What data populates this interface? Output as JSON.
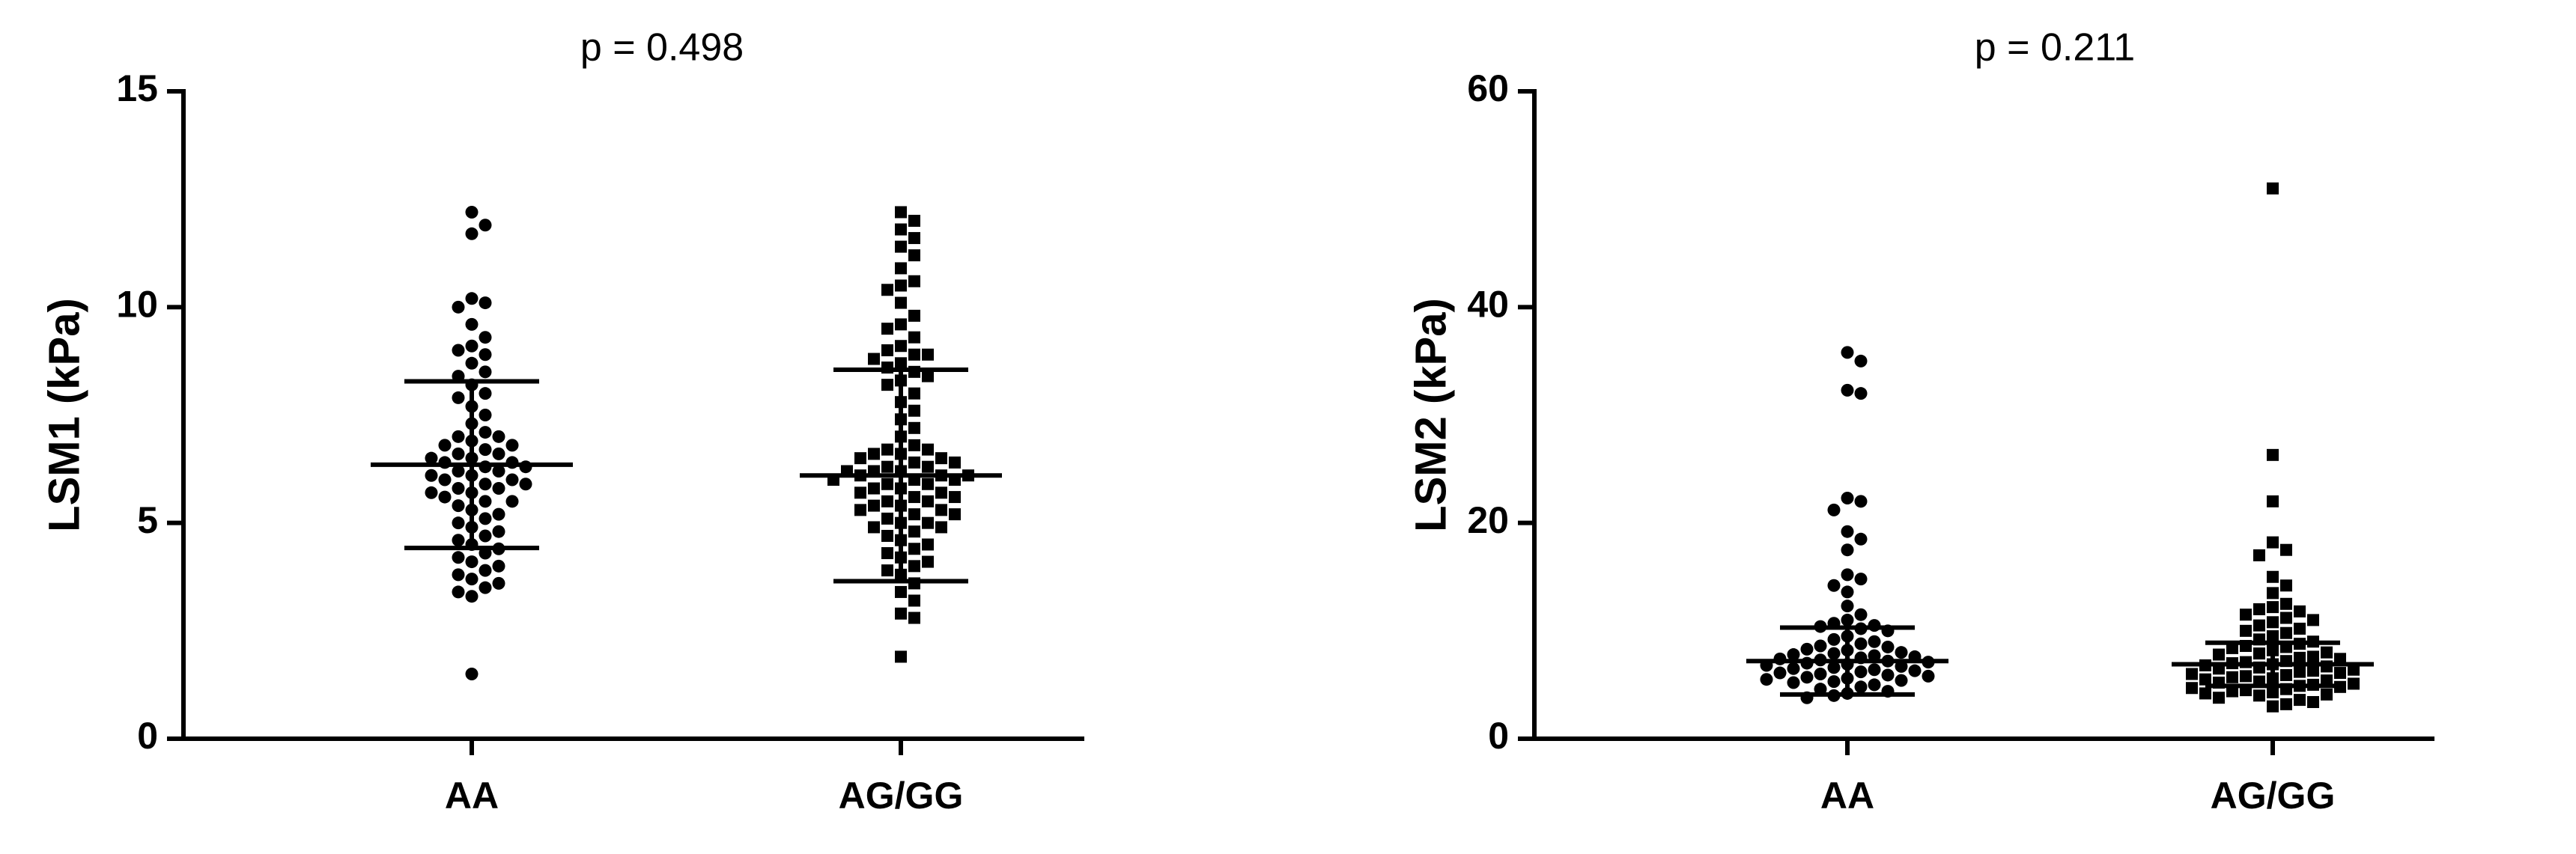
{
  "chart_data": [
    {
      "type": "dot",
      "title": "p = 0.498",
      "ylabel": "LSM1 (kPa)",
      "categories": [
        "AA",
        "AG/GG"
      ],
      "ylim": [
        0,
        15
      ],
      "yticks": [
        0,
        5,
        10,
        15
      ],
      "color": "#000000",
      "groups": [
        {
          "name": "AA",
          "marker": "circle",
          "mean": 6.35,
          "sd": 1.93,
          "values": [
            12.2,
            11.9,
            11.7,
            10.2,
            10.1,
            10.0,
            9.6,
            9.3,
            9.1,
            9.0,
            8.9,
            8.7,
            8.5,
            8.4,
            8.2,
            8.0,
            7.9,
            7.7,
            7.5,
            7.3,
            7.1,
            7.0,
            7.0,
            6.9,
            6.8,
            6.8,
            6.7,
            6.6,
            6.6,
            6.5,
            6.5,
            6.4,
            6.4,
            6.3,
            6.3,
            6.2,
            6.2,
            6.1,
            6.1,
            6.0,
            6.0,
            5.9,
            5.9,
            5.8,
            5.8,
            5.7,
            5.7,
            5.6,
            5.5,
            5.5,
            5.4,
            5.3,
            5.2,
            5.1,
            5.0,
            4.9,
            4.8,
            4.7,
            4.6,
            4.5,
            4.4,
            4.3,
            4.2,
            4.1,
            4.0,
            3.9,
            3.8,
            3.7,
            3.6,
            3.5,
            3.4,
            3.3,
            1.5
          ]
        },
        {
          "name": "AG/GG",
          "marker": "square",
          "mean": 6.1,
          "sd": 2.45,
          "values": [
            12.2,
            12.0,
            11.8,
            11.6,
            11.4,
            11.2,
            10.9,
            10.6,
            10.5,
            10.4,
            10.1,
            9.8,
            9.6,
            9.5,
            9.3,
            9.1,
            9.0,
            8.9,
            8.9,
            8.8,
            8.7,
            8.6,
            8.5,
            8.4,
            8.3,
            8.2,
            8.0,
            7.8,
            7.6,
            7.4,
            7.2,
            7.0,
            6.8,
            6.7,
            6.7,
            6.6,
            6.6,
            6.5,
            6.5,
            6.4,
            6.4,
            6.3,
            6.3,
            6.2,
            6.2,
            6.2,
            6.1,
            6.1,
            6.1,
            6.0,
            6.0,
            6.0,
            5.9,
            5.9,
            5.8,
            5.8,
            5.7,
            5.7,
            5.6,
            5.6,
            5.5,
            5.5,
            5.4,
            5.4,
            5.3,
            5.3,
            5.2,
            5.2,
            5.1,
            5.0,
            5.0,
            4.9,
            4.9,
            4.8,
            4.7,
            4.6,
            4.5,
            4.4,
            4.3,
            4.2,
            4.1,
            4.0,
            3.9,
            3.8,
            3.6,
            3.4,
            3.2,
            2.9,
            2.8,
            1.9
          ]
        }
      ]
    },
    {
      "type": "dot",
      "title": "p = 0.211",
      "ylabel": "LSM2 (kPa)",
      "categories": [
        "AA",
        "AG/GG"
      ],
      "ylim": [
        0,
        60
      ],
      "yticks": [
        0,
        20,
        40,
        60
      ],
      "color": "#000000",
      "groups": [
        {
          "name": "AA",
          "marker": "circle",
          "mean": 7.2,
          "sd": 3.1,
          "values": [
            35.8,
            35.0,
            32.3,
            32.0,
            22.3,
            22.0,
            21.2,
            19.2,
            18.5,
            17.5,
            15.2,
            14.8,
            14.2,
            13.6,
            12.3,
            11.5,
            11.0,
            10.7,
            10.5,
            10.4,
            10.2,
            10.0,
            9.5,
            9.2,
            9.0,
            8.8,
            8.6,
            8.5,
            8.3,
            8.2,
            8.0,
            7.9,
            7.8,
            7.7,
            7.6,
            7.5,
            7.4,
            7.3,
            7.2,
            7.1,
            7.0,
            6.9,
            6.8,
            6.7,
            6.6,
            6.5,
            6.4,
            6.3,
            6.2,
            6.1,
            6.0,
            5.9,
            5.8,
            5.7,
            5.6,
            5.5,
            5.4,
            5.3,
            5.2,
            5.0,
            4.8,
            4.6,
            4.4,
            4.2,
            4.0,
            3.8
          ]
        },
        {
          "name": "AG/GG",
          "marker": "square",
          "mean": 6.9,
          "sd": 2.0,
          "values": [
            51.0,
            26.3,
            22.0,
            18.2,
            17.5,
            17.0,
            15.0,
            14.2,
            13.5,
            12.5,
            12.2,
            12.0,
            11.8,
            11.5,
            11.2,
            11.0,
            10.8,
            10.5,
            10.2,
            10.0,
            9.8,
            9.5,
            9.2,
            9.0,
            8.8,
            8.6,
            8.5,
            8.4,
            8.2,
            8.0,
            7.9,
            7.8,
            7.6,
            7.5,
            7.4,
            7.2,
            7.1,
            7.0,
            6.9,
            6.8,
            6.7,
            6.6,
            6.5,
            6.4,
            6.3,
            6.2,
            6.1,
            6.0,
            5.9,
            5.8,
            5.7,
            5.6,
            5.5,
            5.4,
            5.3,
            5.2,
            5.1,
            5.0,
            4.9,
            4.8,
            4.7,
            4.6,
            4.5,
            4.4,
            4.3,
            4.2,
            4.1,
            4.0,
            3.8,
            3.6,
            3.4,
            3.2,
            3.0
          ]
        }
      ]
    }
  ]
}
